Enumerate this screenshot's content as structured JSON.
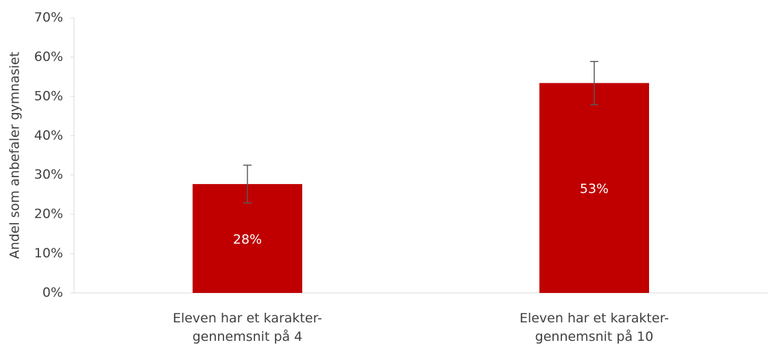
{
  "chart_data": {
    "type": "bar",
    "y_label": "Andel som anbefaler gymnasiet",
    "categories": [
      "Eleven har et karakter-\ngennemsnit på 4",
      "Eleven har et karakter-\ngennemsnit på 10"
    ],
    "values": [
      27.7,
      53.4
    ],
    "value_labels": [
      "28%",
      "53%"
    ],
    "errors": [
      4.8,
      5.5
    ],
    "color": "#c00000",
    "ylim": [
      0,
      70
    ],
    "yticks": [
      {
        "value": 0,
        "label": "0%"
      },
      {
        "value": 10,
        "label": "10%"
      },
      {
        "value": 20,
        "label": "20%"
      },
      {
        "value": 30,
        "label": "30%"
      },
      {
        "value": 40,
        "label": "40%"
      },
      {
        "value": 50,
        "label": "50%"
      },
      {
        "value": 60,
        "label": "60%"
      },
      {
        "value": 70,
        "label": "70%"
      }
    ],
    "grid": false
  }
}
